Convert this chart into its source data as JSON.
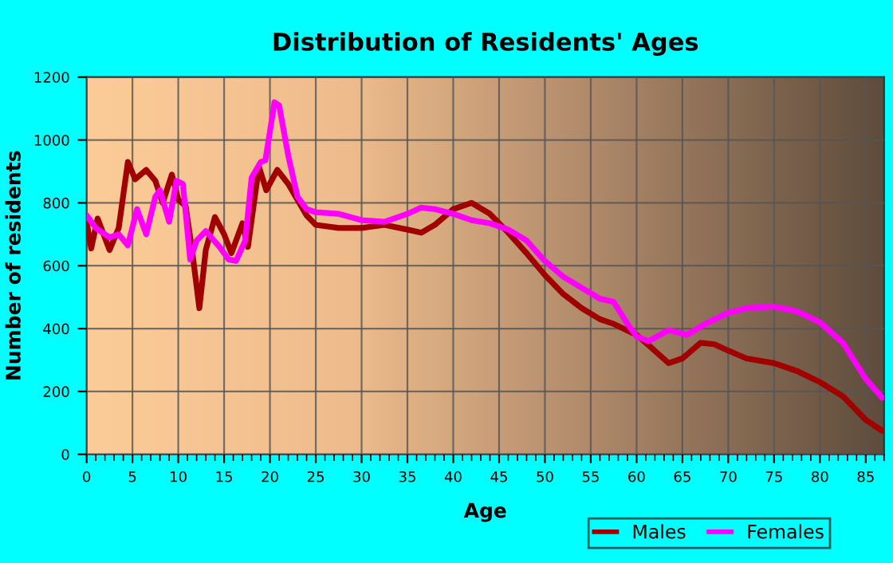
{
  "chart_data": {
    "type": "line",
    "title": "Distribution of Residents' Ages",
    "xlabel": "Age",
    "ylabel": "Number of residents",
    "xlim": [
      0,
      87
    ],
    "xticks": [
      0,
      5,
      10,
      15,
      20,
      25,
      30,
      35,
      40,
      45,
      50,
      55,
      60,
      65,
      70,
      75,
      80,
      85
    ],
    "ylim": [
      0,
      1200
    ],
    "yticks": [
      0,
      200,
      400,
      600,
      800,
      1000,
      1200
    ],
    "grid": true,
    "legend": "bottom right",
    "marker": "none",
    "line_style": "solid",
    "series": [
      {
        "name": "Males",
        "color": "#a00000",
        "x": [
          0,
          0.5,
          1.2,
          2.5,
          3.5,
          4.5,
          5.3,
          6.5,
          7.5,
          8.3,
          9.3,
          10,
          10.8,
          11.5,
          12.3,
          13,
          14,
          15,
          15.8,
          17,
          17.6,
          18.8,
          19.6,
          20.8,
          22,
          24,
          25,
          27.5,
          30,
          32.5,
          35,
          36.5,
          38,
          40,
          42,
          44,
          46,
          48,
          50,
          52,
          54,
          56,
          57.5,
          60,
          61,
          63.5,
          65,
          67,
          68.5,
          70,
          72,
          75,
          77.5,
          80,
          82.5,
          85,
          86.8
        ],
        "values": [
          740,
          655,
          750,
          650,
          720,
          930,
          875,
          905,
          870,
          800,
          890,
          810,
          790,
          650,
          465,
          650,
          755,
          700,
          640,
          735,
          660,
          915,
          840,
          905,
          860,
          760,
          730,
          720,
          720,
          730,
          715,
          705,
          730,
          780,
          800,
          765,
          705,
          640,
          570,
          510,
          465,
          430,
          415,
          380,
          355,
          290,
          305,
          355,
          350,
          330,
          305,
          290,
          265,
          230,
          185,
          110,
          75
        ]
      },
      {
        "name": "Females",
        "color": "#ff00ff",
        "x": [
          0,
          1,
          2.5,
          3.5,
          4.5,
          5.5,
          6.5,
          7.5,
          8,
          9,
          9.8,
          10.5,
          11.3,
          12,
          13,
          14.5,
          15.5,
          16.3,
          17.3,
          18,
          19,
          19.5,
          20.5,
          21,
          22,
          23,
          24,
          25,
          27.5,
          30,
          32.5,
          35,
          36.5,
          38,
          40,
          42,
          44,
          46,
          48,
          50,
          52,
          54,
          56,
          57.5,
          59,
          60,
          61.3,
          63.5,
          65.5,
          67.5,
          70,
          72,
          75,
          77.5,
          80,
          82.5,
          85,
          86.8
        ],
        "values": [
          760,
          720,
          690,
          700,
          665,
          780,
          700,
          820,
          840,
          740,
          870,
          860,
          620,
          680,
          710,
          660,
          620,
          615,
          680,
          880,
          930,
          935,
          1120,
          1110,
          950,
          820,
          780,
          770,
          765,
          745,
          740,
          765,
          785,
          780,
          765,
          745,
          735,
          715,
          680,
          615,
          565,
          530,
          495,
          485,
          415,
          375,
          360,
          395,
          380,
          415,
          450,
          465,
          470,
          455,
          420,
          355,
          240,
          180
        ]
      }
    ]
  }
}
